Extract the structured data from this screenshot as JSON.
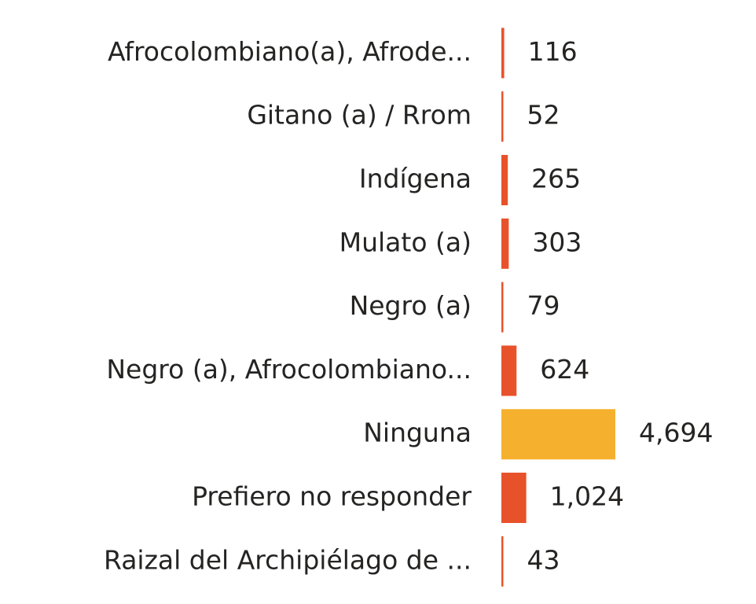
{
  "chart_data": {
    "type": "bar",
    "orientation": "horizontal",
    "categories": [
      "Afrocolombiano(a), Afrode...",
      "Gitano (a) / Rrom",
      "Indígena",
      "Mulato (a)",
      "Negro (a)",
      "Negro (a), Afrocolombiano...",
      "Ninguna",
      "Prefiero no responder",
      "Raizal del Archipiélago de ..."
    ],
    "values": [
      116,
      52,
      265,
      303,
      79,
      624,
      4694,
      1024,
      43
    ],
    "value_labels": [
      "116",
      "52",
      "265",
      "303",
      "79",
      "624",
      "4,694",
      "1,024",
      "43"
    ],
    "colors": [
      "#e8522a",
      "#e8522a",
      "#e8522a",
      "#e8522a",
      "#e8522a",
      "#e8522a",
      "#f5b12e",
      "#e8522a",
      "#e8522a"
    ]
  }
}
